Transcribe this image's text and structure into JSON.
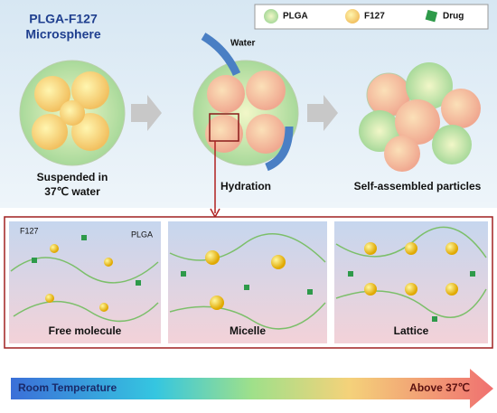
{
  "header": {
    "title_lines": [
      "PLGA-F127",
      "Microsphere"
    ]
  },
  "legend": [
    {
      "label": "PLGA"
    },
    {
      "label": "F127"
    },
    {
      "label": "Drug"
    }
  ],
  "water_label": "Water",
  "stages": [
    {
      "label_lines": [
        "Suspended in",
        "37℃ water"
      ]
    },
    {
      "label_lines": [
        "Hydration"
      ]
    },
    {
      "label_lines": [
        "Self-assembled particles"
      ]
    }
  ],
  "panel_annotations": [
    "F127",
    "PLGA"
  ],
  "panels": [
    {
      "label": "Free molecule"
    },
    {
      "label": "Micelle"
    },
    {
      "label": "Lattice"
    }
  ],
  "temperature_bar": {
    "start": "Room Temperature",
    "end": "Above 37℃"
  }
}
